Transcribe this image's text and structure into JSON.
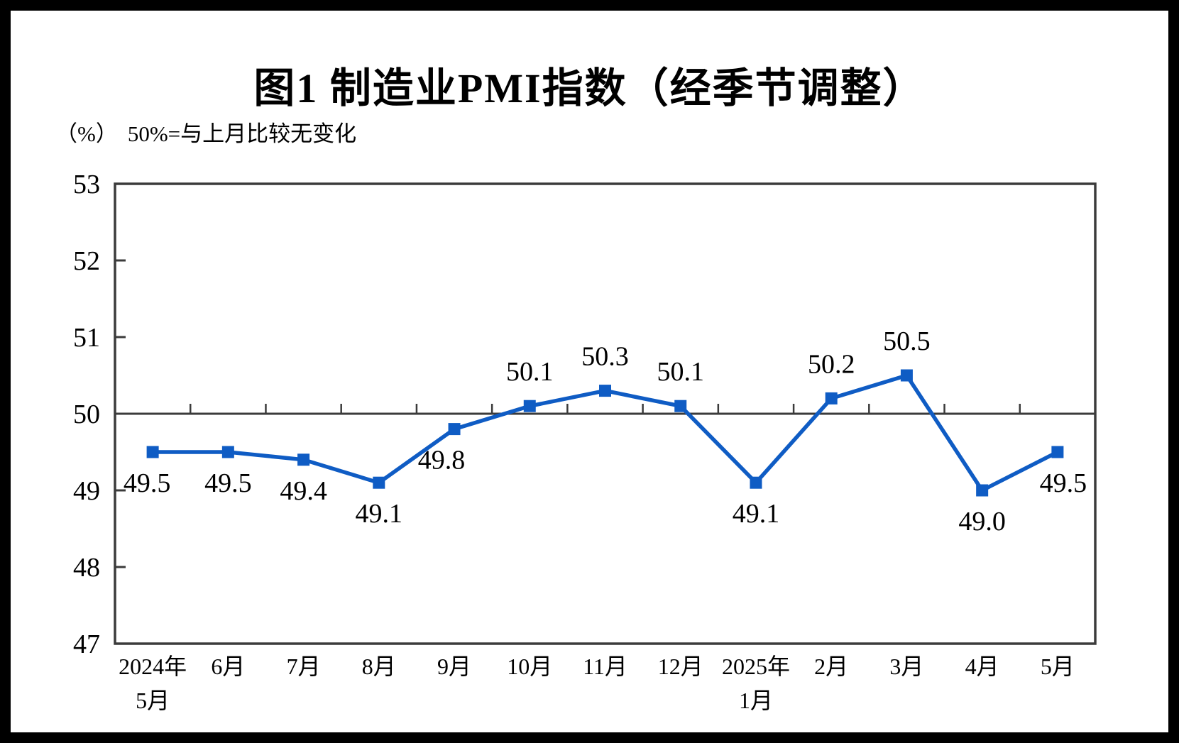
{
  "page": {
    "background_color": "#ffffff",
    "border_color": "#000000"
  },
  "chart_data": {
    "type": "line",
    "title": "图1 制造业PMI指数（经季节调整）",
    "unit_label": "（%）",
    "note": "50%=与上月比较无变化",
    "categories": [
      [
        "2024年",
        "5月"
      ],
      [
        "6月"
      ],
      [
        "7月"
      ],
      [
        "8月"
      ],
      [
        "9月"
      ],
      [
        "10月"
      ],
      [
        "11月"
      ],
      [
        "12月"
      ],
      [
        "2025年",
        "1月"
      ],
      [
        "2月"
      ],
      [
        "3月"
      ],
      [
        "4月"
      ],
      [
        "5月"
      ]
    ],
    "values": [
      49.5,
      49.5,
      49.4,
      49.1,
      49.8,
      50.1,
      50.3,
      50.1,
      49.1,
      50.2,
      50.5,
      49.0,
      49.5
    ],
    "data_labels": [
      "49.5",
      "49.5",
      "49.4",
      "49.1",
      "49.8",
      "50.1",
      "50.3",
      "50.1",
      "49.1",
      "50.2",
      "50.5",
      "49.0",
      "49.5"
    ],
    "label_side": [
      "below",
      "below",
      "below",
      "below",
      "below",
      "above",
      "above",
      "above",
      "below",
      "above",
      "above",
      "below",
      "below"
    ],
    "label_dx": [
      -8,
      0,
      0,
      0,
      -18,
      0,
      0,
      0,
      0,
      0,
      0,
      0,
      8
    ],
    "xlabel": "",
    "ylabel": "",
    "ylim": [
      47,
      53
    ],
    "yticks": [
      53,
      52,
      51,
      50,
      49,
      48,
      47
    ],
    "ytick_labels": [
      "53",
      "52",
      "51",
      "50",
      "49",
      "48",
      "47"
    ],
    "reference_line": 50,
    "grid": "off",
    "legend": "none",
    "marker": "square",
    "series_color": "#0f5cc4",
    "axis_color": "#3b3b3b",
    "text_color": "#000000"
  }
}
